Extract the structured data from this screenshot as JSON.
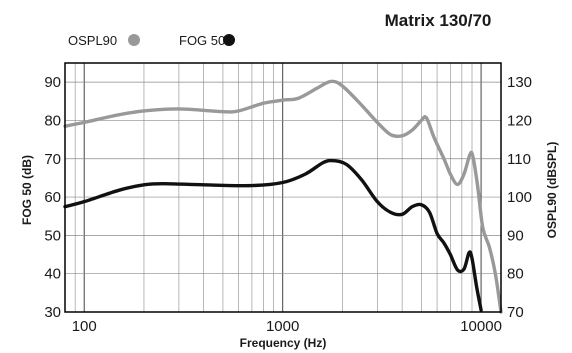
{
  "chart_data": {
    "type": "line",
    "title": "Matrix 130/70",
    "xlabel": "Frequency (Hz)",
    "ylabel_left": "FOG 50 (dB)",
    "ylabel_right": "OSPL90 (dBSPL)",
    "xscale": "log",
    "xlim": [
      80,
      12600
    ],
    "ylim_left": [
      30,
      95
    ],
    "ylim_right": [
      70,
      135
    ],
    "x_ticks": [
      "100",
      "1000",
      "10000"
    ],
    "y_ticks_left": [
      "30",
      "40",
      "50",
      "60",
      "70",
      "80",
      "90"
    ],
    "y_ticks_right": [
      "70",
      "80",
      "90",
      "100",
      "110",
      "120",
      "130"
    ],
    "grid": true,
    "legend_placement": "top-left",
    "series": [
      {
        "name": "OSPL90",
        "axis": "right",
        "color": "#999999",
        "marker": "circle",
        "points": [
          [
            80,
            118.5
          ],
          [
            100,
            119.5
          ],
          [
            150,
            121.5
          ],
          [
            200,
            122.5
          ],
          [
            300,
            123
          ],
          [
            500,
            122.3
          ],
          [
            600,
            122.5
          ],
          [
            800,
            124.5
          ],
          [
            1000,
            125.3
          ],
          [
            1200,
            125.8
          ],
          [
            1500,
            128.5
          ],
          [
            1750,
            130.2
          ],
          [
            2000,
            129
          ],
          [
            2500,
            124
          ],
          [
            3000,
            119.5
          ],
          [
            3500,
            116.3
          ],
          [
            4000,
            116
          ],
          [
            4500,
            117.5
          ],
          [
            5000,
            120
          ],
          [
            5300,
            120.7
          ],
          [
            5800,
            115.5
          ],
          [
            6500,
            110
          ],
          [
            7000,
            106
          ],
          [
            7600,
            103.3
          ],
          [
            8200,
            106
          ],
          [
            8800,
            111.2
          ],
          [
            9100,
            110.5
          ],
          [
            9600,
            103
          ],
          [
            10200,
            92
          ],
          [
            11000,
            87
          ],
          [
            11800,
            80
          ],
          [
            12600,
            70
          ]
        ]
      },
      {
        "name": "FOG 50",
        "axis": "left",
        "color": "#111111",
        "marker": "circle",
        "points": [
          [
            80,
            57.5
          ],
          [
            100,
            58.8
          ],
          [
            150,
            61.8
          ],
          [
            200,
            63.2
          ],
          [
            250,
            63.5
          ],
          [
            400,
            63.2
          ],
          [
            700,
            63
          ],
          [
            1000,
            63.8
          ],
          [
            1300,
            66
          ],
          [
            1600,
            69
          ],
          [
            1800,
            69.5
          ],
          [
            2100,
            68.5
          ],
          [
            2500,
            64.5
          ],
          [
            3000,
            58.8
          ],
          [
            3500,
            56
          ],
          [
            4000,
            55.5
          ],
          [
            4500,
            57.5
          ],
          [
            5000,
            58
          ],
          [
            5500,
            56
          ],
          [
            6000,
            50.5
          ],
          [
            6500,
            48
          ],
          [
            7000,
            45
          ],
          [
            7600,
            41
          ],
          [
            8200,
            41.2
          ],
          [
            8700,
            45.5
          ],
          [
            9000,
            44
          ],
          [
            9500,
            36.5
          ],
          [
            10000,
            30.5
          ]
        ]
      }
    ]
  }
}
